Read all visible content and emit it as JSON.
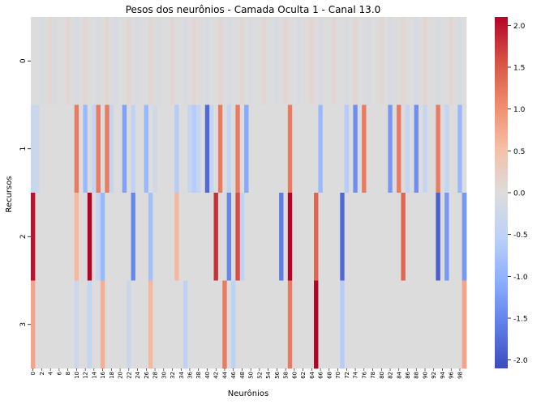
{
  "chart_data": {
    "type": "heatmap",
    "title": "Pesos dos neurônios - Camada Oculta 1 - Canal 13.0",
    "xlabel": "Neurônios",
    "ylabel": "Recursos",
    "x_ticks": [
      "0",
      "2",
      "4",
      "6",
      "8",
      "10",
      "12",
      "14",
      "16",
      "18",
      "20",
      "22",
      "24",
      "26",
      "28",
      "30",
      "32",
      "34",
      "36",
      "38",
      "40",
      "42",
      "44",
      "46",
      "48",
      "50",
      "52",
      "54",
      "56",
      "58",
      "60",
      "62",
      "64",
      "66",
      "68",
      "70",
      "72",
      "74",
      "76",
      "78",
      "80",
      "82",
      "84",
      "86",
      "88",
      "90",
      "92",
      "94",
      "96",
      "98"
    ],
    "rows": [
      "0",
      "1",
      "2",
      "3"
    ],
    "n_cols": 100,
    "colormap": "coolwarm",
    "vmin": -2.1,
    "vmax": 2.1,
    "colorbar_ticks": [
      "2.0",
      "1.5",
      "1.0",
      "0.5",
      "0.0",
      "-0.5",
      "-1.0",
      "-1.5",
      "-2.0"
    ],
    "colorbar_values": [
      2.0,
      1.5,
      1.0,
      0.5,
      0.0,
      -0.5,
      -1.0,
      -1.5,
      -2.0
    ],
    "values": [
      [
        0.0,
        0.0,
        -0.1,
        0.0,
        0.1,
        -0.1,
        0.0,
        0.0,
        0.1,
        0.0,
        -0.1,
        0.0,
        0.1,
        0.0,
        0.0,
        -0.1,
        0.0,
        0.1,
        0.0,
        -0.1,
        0.0,
        0.0,
        0.1,
        0.0,
        -0.1,
        0.0,
        0.0,
        0.1,
        0.0,
        -0.1,
        0.0,
        0.0,
        0.1,
        0.0,
        0.0,
        -0.1,
        0.0,
        0.1,
        0.0,
        0.0,
        -0.1,
        0.0,
        0.0,
        0.1,
        0.0,
        -0.1,
        0.0,
        0.0,
        0.1,
        0.0,
        -0.1,
        0.0,
        0.0,
        0.1,
        0.0,
        0.0,
        -0.1,
        0.0,
        0.1,
        0.0,
        0.0,
        -0.1,
        0.0,
        0.0,
        0.1,
        0.0,
        -0.1,
        0.0,
        0.0,
        0.1,
        0.0,
        0.0,
        -0.1,
        0.0,
        0.1,
        0.0,
        0.0,
        -0.1,
        0.0,
        0.0,
        0.1,
        0.0,
        -0.1,
        0.0,
        0.0,
        0.1,
        0.0,
        0.0,
        -0.1,
        0.0,
        0.1,
        0.0,
        0.0,
        -0.1,
        0.0,
        0.0,
        0.1,
        0.0,
        -0.1,
        0.0
      ],
      [
        -0.3,
        -0.3,
        0.0,
        0.0,
        0.0,
        0.0,
        0.0,
        0.0,
        0.0,
        0.0,
        1.2,
        0.0,
        -0.9,
        0.0,
        -0.4,
        1.2,
        0.0,
        1.2,
        -0.4,
        0.0,
        0.0,
        -1.2,
        0.0,
        -0.5,
        0.0,
        0.0,
        -0.9,
        0.0,
        -0.2,
        0.0,
        0.0,
        0.0,
        0.0,
        -0.6,
        0.0,
        0.0,
        -0.4,
        -0.6,
        -0.4,
        0.0,
        -1.8,
        -0.4,
        0.0,
        1.2,
        0.0,
        -0.4,
        0.0,
        1.2,
        0.0,
        -1.1,
        0.0,
        0.0,
        0.0,
        0.0,
        0.0,
        0.0,
        0.0,
        0.0,
        0.0,
        1.2,
        0.0,
        0.0,
        0.0,
        0.0,
        0.0,
        0.0,
        -0.9,
        0.0,
        0.0,
        0.0,
        0.0,
        0.0,
        -0.6,
        0.0,
        -1.4,
        0.0,
        1.2,
        0.0,
        0.0,
        0.0,
        0.0,
        0.0,
        -1.3,
        0.0,
        1.2,
        0.0,
        -0.4,
        0.0,
        -1.4,
        0.0,
        -0.4,
        0.0,
        0.0,
        1.2,
        0.0,
        -0.4,
        0.0,
        0.0,
        -0.9,
        0.0
      ],
      [
        2.0,
        0.0,
        0.0,
        0.0,
        0.0,
        0.0,
        0.0,
        0.0,
        0.0,
        0.0,
        0.6,
        0.0,
        0.0,
        2.1,
        0.0,
        -0.4,
        -0.9,
        0.0,
        0.0,
        0.0,
        0.0,
        0.0,
        0.0,
        -1.5,
        0.0,
        0.0,
        0.0,
        -0.8,
        0.0,
        0.0,
        0.0,
        0.0,
        0.0,
        0.6,
        0.0,
        0.0,
        0.0,
        0.0,
        0.0,
        0.0,
        0.0,
        0.0,
        1.8,
        0.0,
        0.0,
        -1.5,
        0.0,
        1.6,
        -0.5,
        0.0,
        0.0,
        0.0,
        0.0,
        0.0,
        0.0,
        0.0,
        0.0,
        -1.6,
        0.0,
        2.1,
        0.0,
        0.0,
        0.0,
        0.0,
        0.0,
        1.4,
        0.0,
        0.0,
        0.0,
        0.0,
        0.0,
        -1.8,
        0.0,
        0.0,
        0.0,
        0.0,
        0.0,
        0.0,
        0.0,
        0.0,
        0.0,
        0.0,
        0.0,
        0.0,
        0.0,
        1.4,
        0.0,
        0.0,
        0.0,
        0.0,
        0.0,
        0.0,
        0.0,
        -1.9,
        0.0,
        -1.3,
        0.0,
        0.0,
        0.0,
        -1.3
      ],
      [
        0.8,
        0.0,
        0.0,
        0.0,
        0.0,
        0.0,
        0.0,
        0.0,
        0.0,
        0.0,
        -0.3,
        0.0,
        0.0,
        -0.4,
        0.0,
        0.0,
        0.7,
        0.0,
        0.0,
        0.0,
        0.0,
        0.0,
        -0.3,
        0.0,
        0.0,
        0.0,
        0.0,
        0.6,
        0.0,
        0.0,
        0.0,
        0.0,
        0.0,
        0.0,
        0.0,
        -0.5,
        0.0,
        0.0,
        0.0,
        0.0,
        0.0,
        0.0,
        0.0,
        0.0,
        1.2,
        0.0,
        -0.5,
        0.0,
        0.0,
        0.0,
        0.0,
        0.0,
        0.0,
        0.0,
        0.0,
        0.0,
        0.0,
        0.0,
        0.0,
        1.2,
        0.0,
        0.0,
        0.0,
        0.0,
        0.0,
        2.1,
        0.0,
        0.0,
        0.0,
        0.0,
        0.0,
        -0.6,
        0.0,
        0.0,
        0.0,
        0.0,
        0.0,
        0.0,
        0.0,
        0.0,
        0.0,
        0.0,
        0.0,
        0.0,
        0.0,
        0.0,
        0.0,
        0.0,
        0.0,
        0.0,
        0.0,
        0.0,
        0.0,
        0.0,
        0.0,
        0.0,
        0.0,
        0.0,
        0.0,
        0.8
      ]
    ]
  }
}
